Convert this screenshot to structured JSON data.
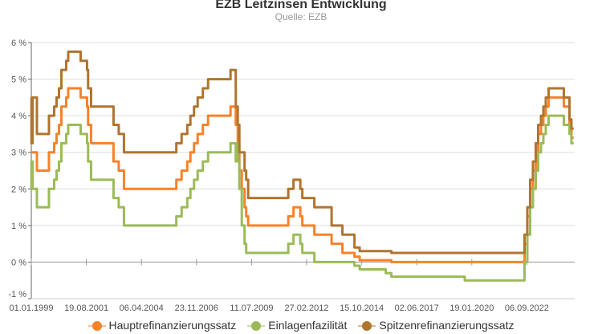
{
  "chart_data": {
    "type": "line",
    "step": true,
    "title": "EZB Leitzinsen Entwicklung",
    "subtitle": "Quelle: EZB",
    "xlabel": "",
    "ylabel": "",
    "xlim": [
      "1999-01-01",
      "2024-12-01"
    ],
    "ylim": [
      -1,
      6
    ],
    "y_ticks": [
      "-1 %",
      "0 %",
      "1 %",
      "2 %",
      "3 %",
      "4 %",
      "5 %",
      "6 %"
    ],
    "x_ticks": [
      "01.01.1999",
      "19.08.2001",
      "06.04.2004",
      "23.11.2006",
      "11.07.2009",
      "27.02.2012",
      "15.10.2014",
      "02.06.2017",
      "19.01.2020",
      "06.09.2022"
    ],
    "grid": true,
    "legend_position": "bottom",
    "dates": [
      "1999-01-01",
      "1999-01-04",
      "1999-01-22",
      "1999-04-09",
      "1999-11-05",
      "2000-02-04",
      "2000-03-17",
      "2000-04-28",
      "2000-06-09",
      "2000-09-01",
      "2000-10-06",
      "2001-05-11",
      "2001-08-31",
      "2001-09-18",
      "2001-11-09",
      "2002-12-06",
      "2003-03-07",
      "2003-06-06",
      "2005-12-06",
      "2006-03-08",
      "2006-06-15",
      "2006-08-09",
      "2006-10-11",
      "2006-12-13",
      "2007-03-14",
      "2007-06-13",
      "2008-07-09",
      "2008-10-08",
      "2008-10-09",
      "2008-11-12",
      "2008-12-10",
      "2009-01-21",
      "2009-03-11",
      "2009-04-08",
      "2009-05-13",
      "2011-04-13",
      "2011-07-13",
      "2011-11-09",
      "2011-12-14",
      "2012-07-11",
      "2013-05-08",
      "2013-11-13",
      "2014-06-11",
      "2014-09-10",
      "2015-12-09",
      "2016-03-16",
      "2019-09-18",
      "2022-07-27",
      "2022-09-14",
      "2022-11-02",
      "2022-12-21",
      "2023-02-08",
      "2023-03-22",
      "2023-05-10",
      "2023-06-21",
      "2023-08-02",
      "2023-09-20",
      "2024-06-12",
      "2024-09-18",
      "2024-10-23"
    ],
    "series": [
      {
        "name": "Hauptrefinanzierungssatz",
        "color": "#f7822a",
        "values": [
          3.0,
          3.0,
          3.0,
          2.5,
          3.0,
          3.25,
          3.5,
          3.75,
          4.25,
          4.5,
          4.75,
          4.5,
          4.25,
          3.75,
          3.25,
          2.75,
          2.5,
          2.0,
          2.25,
          2.5,
          2.75,
          3.0,
          3.25,
          3.5,
          3.75,
          4.0,
          4.25,
          3.75,
          3.75,
          3.25,
          2.5,
          2.0,
          1.5,
          1.25,
          1.0,
          1.25,
          1.5,
          1.25,
          1.0,
          0.75,
          0.5,
          0.25,
          0.15,
          0.05,
          0.05,
          0.0,
          0.0,
          0.5,
          1.25,
          2.0,
          2.5,
          3.0,
          3.5,
          3.75,
          4.0,
          4.25,
          4.5,
          4.25,
          3.65,
          3.4
        ]
      },
      {
        "name": "Einlagenfazilität",
        "color": "#9bbb59",
        "values": [
          2.0,
          2.75,
          2.0,
          1.5,
          2.0,
          2.25,
          2.5,
          2.75,
          3.25,
          3.5,
          3.75,
          3.5,
          3.25,
          2.75,
          2.25,
          1.75,
          1.5,
          1.0,
          1.25,
          1.5,
          1.75,
          2.0,
          2.25,
          2.5,
          2.75,
          3.0,
          3.25,
          2.75,
          3.25,
          2.75,
          2.0,
          1.0,
          0.5,
          0.25,
          0.25,
          0.5,
          0.75,
          0.5,
          0.25,
          0.0,
          0.0,
          0.0,
          -0.1,
          -0.2,
          -0.3,
          -0.4,
          -0.5,
          0.0,
          0.75,
          1.5,
          2.0,
          2.5,
          3.0,
          3.25,
          3.5,
          3.75,
          4.0,
          3.75,
          3.5,
          3.25
        ]
      },
      {
        "name": "Spitzenrefinanzierungssatz",
        "color": "#b0742f",
        "values": [
          4.5,
          3.25,
          4.5,
          3.5,
          4.0,
          4.25,
          4.5,
          4.75,
          5.25,
          5.5,
          5.75,
          5.5,
          5.25,
          4.75,
          4.25,
          3.75,
          3.5,
          3.0,
          3.25,
          3.5,
          3.75,
          4.0,
          4.25,
          4.5,
          4.75,
          5.0,
          5.25,
          4.75,
          4.25,
          3.75,
          3.0,
          3.0,
          2.5,
          2.25,
          1.75,
          2.0,
          2.25,
          2.0,
          1.75,
          1.5,
          1.0,
          0.75,
          0.4,
          0.3,
          0.3,
          0.25,
          0.25,
          0.75,
          1.5,
          2.25,
          2.75,
          3.25,
          3.75,
          4.0,
          4.25,
          4.5,
          4.75,
          4.5,
          3.9,
          3.65
        ]
      }
    ]
  }
}
